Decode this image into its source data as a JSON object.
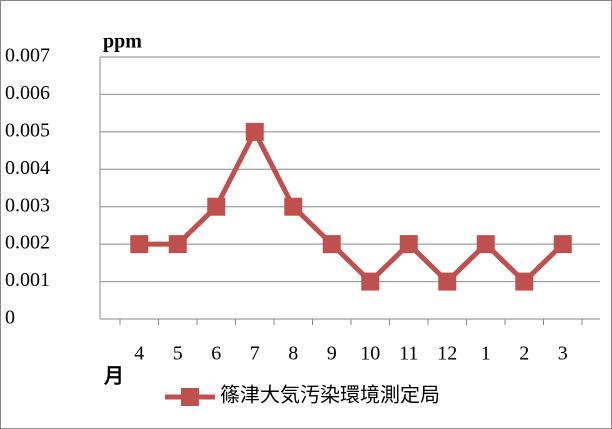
{
  "chart_data": {
    "type": "line",
    "y_label": "ppm",
    "x_label": "月",
    "categories": [
      "4",
      "5",
      "6",
      "7",
      "8",
      "9",
      "10",
      "11",
      "12",
      "1",
      "2",
      "3"
    ],
    "series": [
      {
        "name": "篠津大気汚染環境測定局",
        "color": "#c0504d",
        "values": [
          0.002,
          0.002,
          0.003,
          0.005,
          0.003,
          0.002,
          0.001,
          0.002,
          0.001,
          0.002,
          0.001,
          0.002
        ]
      }
    ],
    "ylim": [
      0,
      0.007
    ],
    "yticks": [
      0,
      0.001,
      0.002,
      0.003,
      0.004,
      0.005,
      0.006,
      0.007
    ],
    "grid": true,
    "legend": "bottom"
  }
}
